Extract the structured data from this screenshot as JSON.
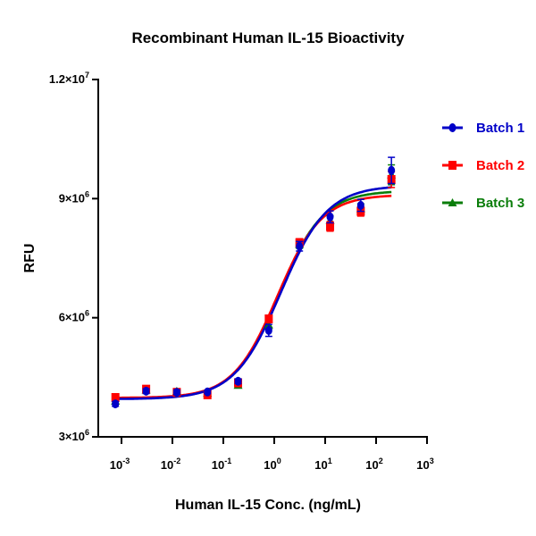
{
  "chart_data": {
    "type": "line",
    "title": "Recombinant Human IL-15 Bioactivity",
    "xlabel": "Human IL-15 Conc. (ng/mL)",
    "ylabel": "RFU",
    "xscale": "log",
    "xlim": [
      0.00035,
      1000
    ],
    "ylim": [
      3000000,
      12000000
    ],
    "grid": false,
    "legend_position": "right",
    "x_ticks": [
      {
        "value": 0.001,
        "base": "10",
        "exp": "-3"
      },
      {
        "value": 0.01,
        "base": "10",
        "exp": "-2"
      },
      {
        "value": 0.1,
        "base": "10",
        "exp": "-1"
      },
      {
        "value": 1,
        "base": "10",
        "exp": "0"
      },
      {
        "value": 10,
        "base": "10",
        "exp": "1"
      },
      {
        "value": 100,
        "base": "10",
        "exp": "2"
      },
      {
        "value": 1000,
        "base": "10",
        "exp": "3"
      }
    ],
    "y_ticks": [
      {
        "value": 3000000,
        "mant": "3",
        "exp": "6"
      },
      {
        "value": 6000000,
        "mant": "6",
        "exp": "6"
      },
      {
        "value": 9000000,
        "mant": "9",
        "exp": "6"
      },
      {
        "value": 12000000,
        "mant": "1.2",
        "exp": "7"
      }
    ],
    "x": [
      0.00076,
      0.00305,
      0.0122,
      0.0488,
      0.195,
      0.78,
      3.125,
      12.5,
      50,
      200
    ],
    "series": [
      {
        "name": "Batch 1",
        "color": "#0000c8",
        "marker": "circle",
        "values": [
          3830000,
          4150000,
          4120000,
          4130000,
          4400000,
          5680000,
          7800000,
          8540000,
          8830000,
          9710000
        ],
        "errors": [
          60000,
          60000,
          60000,
          40000,
          60000,
          150000,
          120000,
          150000,
          150000,
          330000
        ],
        "fit": {
          "bottom": 3950000,
          "top": 9330000,
          "ec50": 1.35,
          "hill": 0.95
        }
      },
      {
        "name": "Batch 2",
        "color": "#ff0000",
        "marker": "square",
        "values": [
          3990000,
          4200000,
          4120000,
          4060000,
          4360000,
          5970000,
          7890000,
          8300000,
          8680000,
          9480000
        ],
        "errors": [
          50000,
          60000,
          60000,
          40000,
          60000,
          60000,
          100000,
          120000,
          120000,
          200000
        ],
        "fit": {
          "bottom": 3980000,
          "top": 9100000,
          "ec50": 1.15,
          "hill": 1.0
        }
      },
      {
        "name": "Batch 3",
        "color": "#0a7d0a",
        "marker": "triangle",
        "values": [
          3900000,
          4180000,
          4150000,
          4100000,
          4300000,
          5820000,
          7850000,
          8450000,
          8750000,
          9600000
        ],
        "errors": [
          50000,
          60000,
          60000,
          40000,
          60000,
          100000,
          100000,
          120000,
          120000,
          250000
        ],
        "fit": {
          "bottom": 3960000,
          "top": 9200000,
          "ec50": 1.2,
          "hill": 0.98
        }
      }
    ]
  }
}
